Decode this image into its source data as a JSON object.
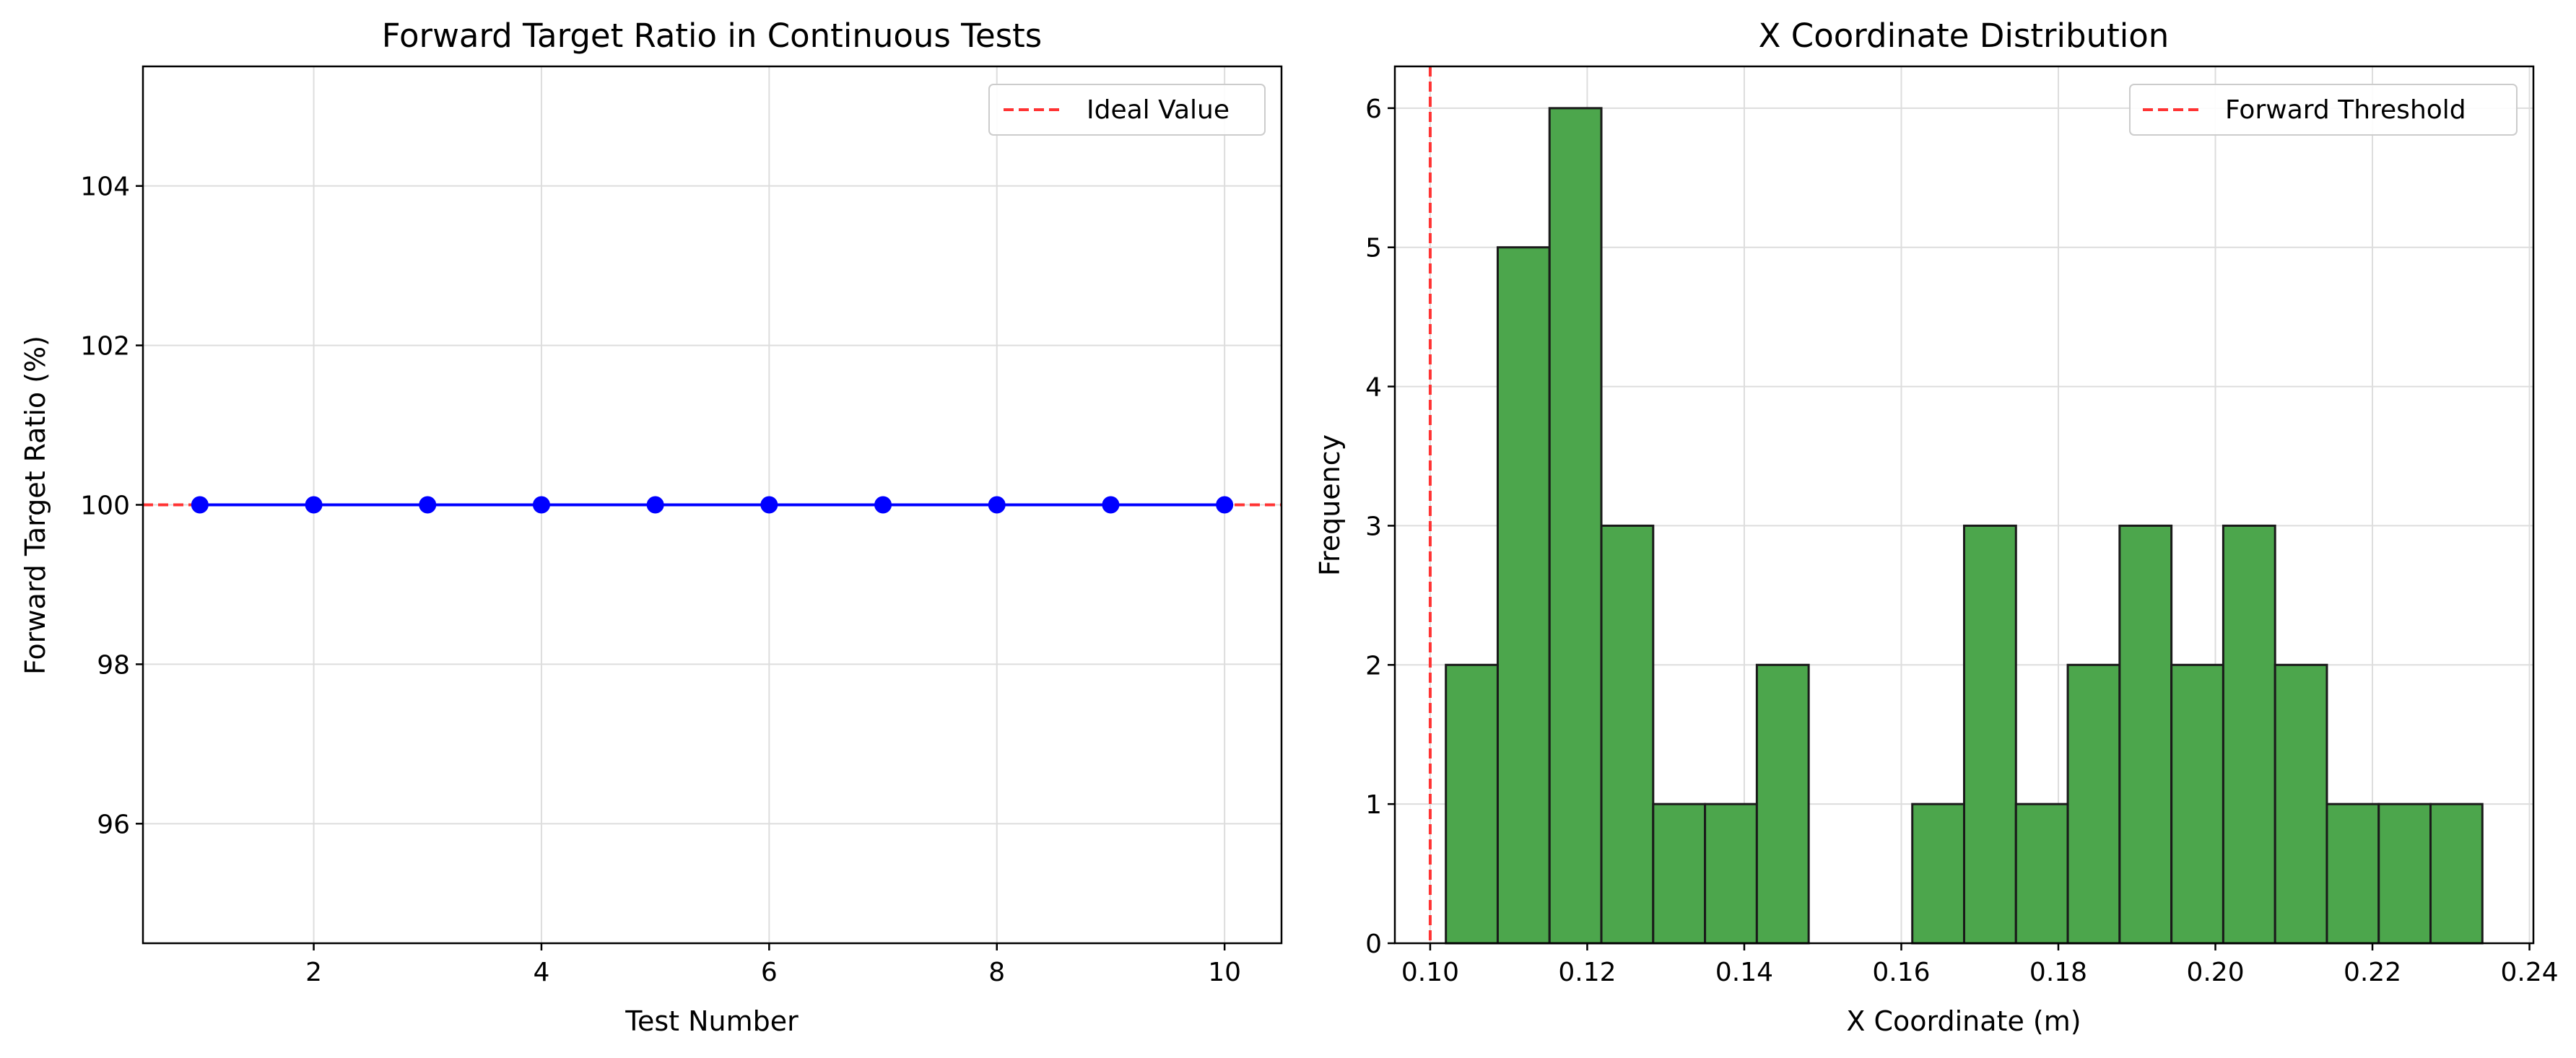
{
  "colors": {
    "line": "#0000ff",
    "marker": "#0000ff",
    "ideal_line": "#ff3333",
    "bar_fill": "#4ca64c",
    "bar_edge": "#1a1a1a",
    "grid": "#dddddd"
  },
  "chart_data": [
    {
      "type": "line",
      "title": "Forward Target Ratio in Continuous Tests",
      "xlabel": "Test Number",
      "ylabel": "Forward Target Ratio (%)",
      "xlim": [
        0.5,
        10.5
      ],
      "ylim": [
        94.5,
        105.5
      ],
      "xticks": [
        2,
        4,
        6,
        8,
        10
      ],
      "yticks": [
        96,
        98,
        100,
        102,
        104
      ],
      "grid": true,
      "legend": {
        "position": "top-right",
        "entries": [
          "Ideal Value"
        ]
      },
      "x": [
        1,
        2,
        3,
        4,
        5,
        6,
        7,
        8,
        9,
        10
      ],
      "y": [
        100,
        100,
        100,
        100,
        100,
        100,
        100,
        100,
        100,
        100
      ],
      "reference_line": {
        "orientation": "horizontal",
        "value": 100,
        "style": "dashed",
        "label": "Ideal Value"
      }
    },
    {
      "type": "bar",
      "subtype": "histogram",
      "title": "X Coordinate Distribution",
      "xlabel": "X Coordinate (m)",
      "ylabel": "Frequency",
      "xlim": [
        0.0955,
        0.2405
      ],
      "ylim": [
        0,
        6.3
      ],
      "xticks": [
        0.1,
        0.12,
        0.14,
        0.16,
        0.18,
        0.2,
        0.22,
        0.24
      ],
      "xtick_labels": [
        "0.10",
        "0.12",
        "0.14",
        "0.16",
        "0.18",
        "0.20",
        "0.22",
        "0.24"
      ],
      "yticks": [
        0,
        1,
        2,
        3,
        4,
        5,
        6
      ],
      "grid": true,
      "legend": {
        "position": "top-right",
        "entries": [
          "Forward Threshold"
        ]
      },
      "bin_edges": [
        0.102,
        0.1086,
        0.1152,
        0.1218,
        0.1284,
        0.135,
        0.1416,
        0.1482,
        0.1548,
        0.1614,
        0.168,
        0.1746,
        0.1812,
        0.1878,
        0.1944,
        0.201,
        0.2076,
        0.2142,
        0.2208,
        0.2274,
        0.234
      ],
      "values": [
        2,
        5,
        6,
        3,
        1,
        1,
        2,
        0,
        0,
        1,
        3,
        1,
        2,
        3,
        2,
        3,
        2,
        1,
        1,
        1
      ],
      "reference_line": {
        "orientation": "vertical",
        "value": 0.1,
        "style": "dashed",
        "label": "Forward Threshold"
      }
    }
  ]
}
